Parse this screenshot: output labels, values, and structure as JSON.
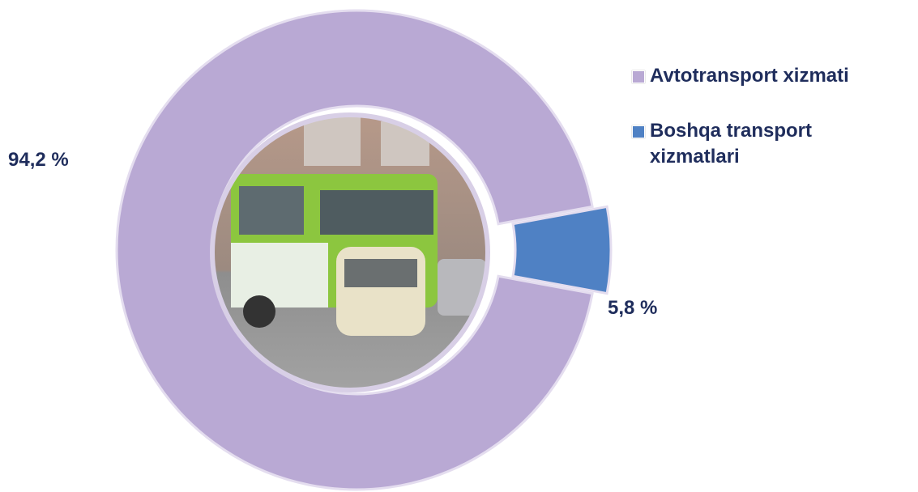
{
  "chart_data": {
    "type": "donut",
    "categories": [
      "Avtotransport xizmati",
      "Boshqa transport xizmatlari"
    ],
    "values": [
      94.2,
      5.8
    ],
    "value_labels": [
      "94,2 %",
      "5,8 %"
    ],
    "colors": [
      "#b9a9d4",
      "#4f81c4"
    ],
    "legend": "top-right"
  }
}
